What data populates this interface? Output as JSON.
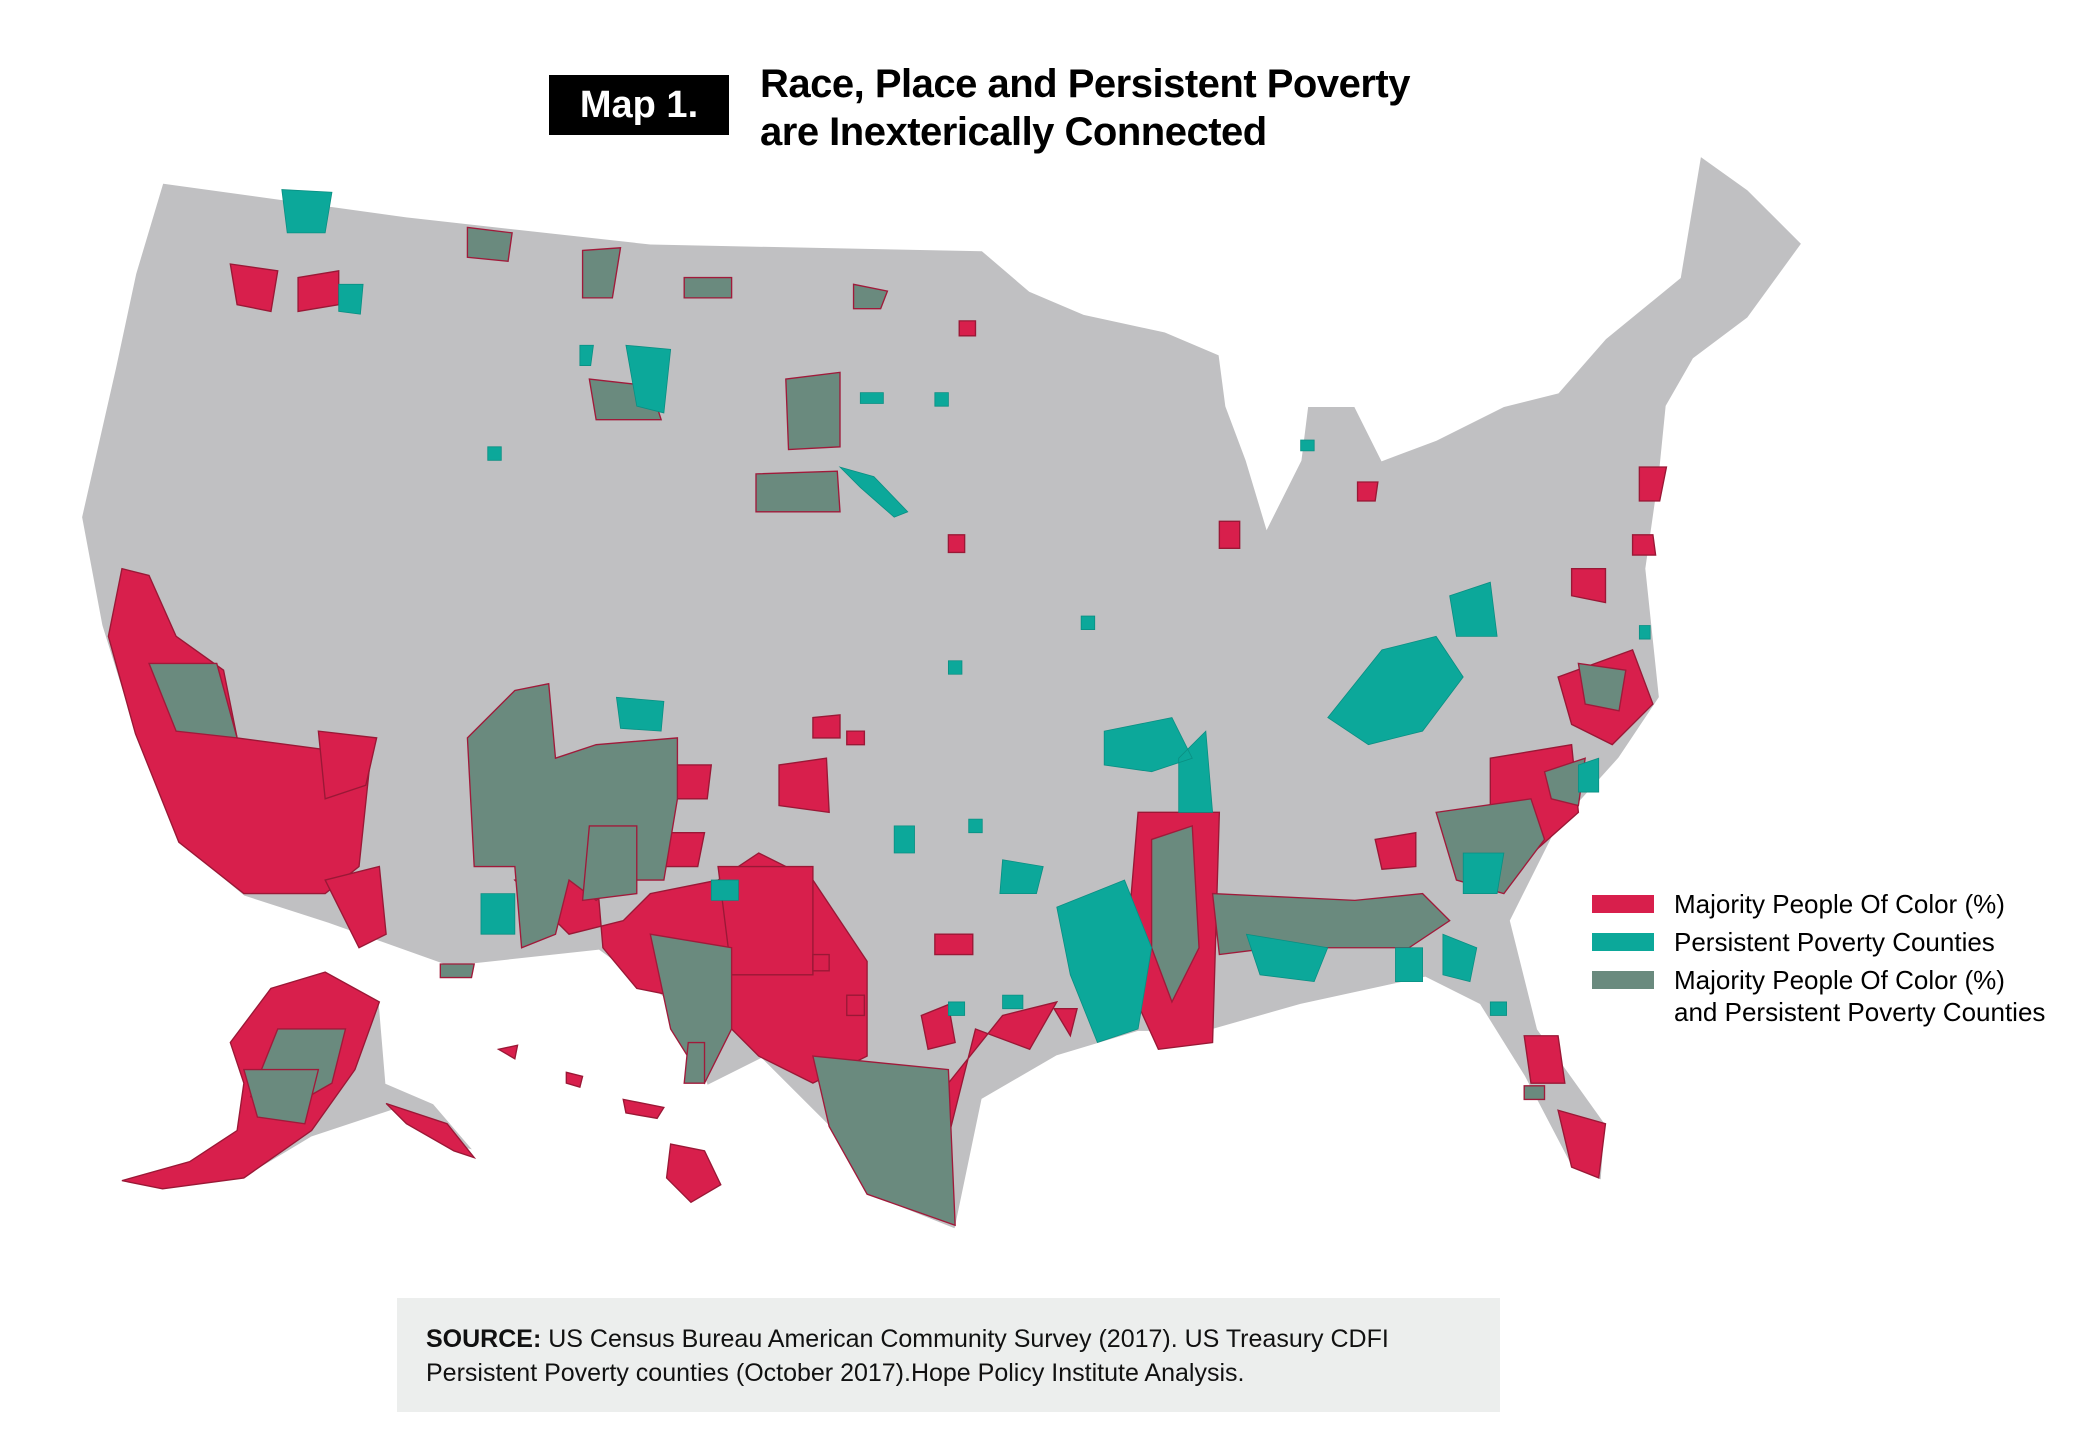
{
  "header": {
    "map_label": "Map 1.",
    "title_line1": "Race, Place and Persistent Poverty",
    "title_line2": "are Inexterically Connected"
  },
  "legend": {
    "items": [
      {
        "label": "Majority People Of Color (%)",
        "color": "#d81f4c"
      },
      {
        "label": "Persistent Poverty Counties",
        "color": "#0ca89a"
      },
      {
        "label": "Majority People Of Color (%)",
        "label2": "and Persistent Poverty Counties",
        "color": "#6a8a7e"
      }
    ]
  },
  "source": {
    "label": "SOURCE:",
    "text": " US Census Bureau American Community Survey (2017). US Treasury CDFI Persistent Poverty counties (October 2017).Hope Policy Institute Analysis."
  },
  "colors": {
    "base_county": "#c0c0c2",
    "majority_poc": "#d81f4c",
    "persistent_poverty": "#0ca89a",
    "both": "#6a8a7e"
  }
}
